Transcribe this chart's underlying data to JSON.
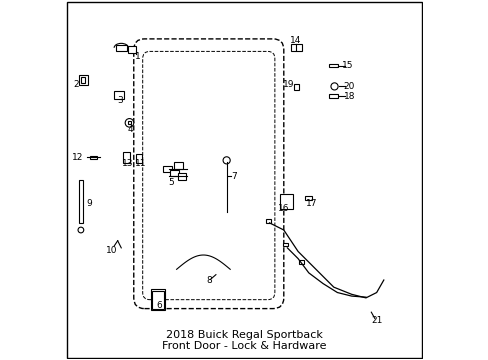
{
  "title": "2018 Buick Regal Sportback\nFront Door - Lock & Hardware",
  "title_fontsize": 8,
  "background_color": "#ffffff",
  "border_color": "#000000",
  "fig_width": 4.89,
  "fig_height": 3.6,
  "dpi": 100
}
